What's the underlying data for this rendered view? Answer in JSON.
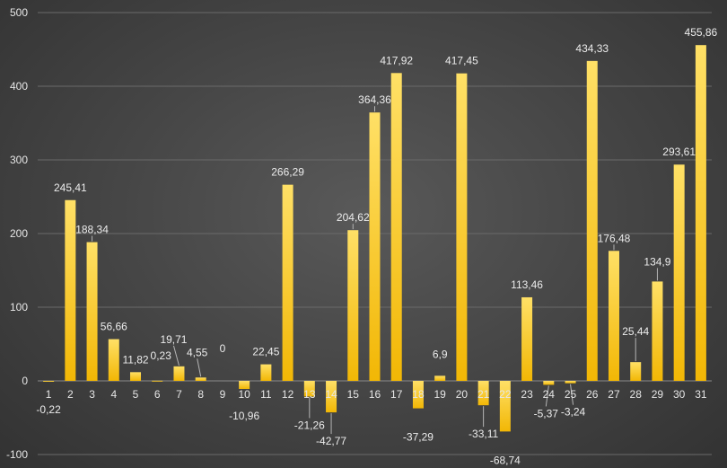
{
  "chart_data": {
    "type": "bar",
    "title": "",
    "xlabel": "",
    "ylabel": "",
    "categories": [
      "1",
      "2",
      "3",
      "4",
      "5",
      "6",
      "7",
      "8",
      "9",
      "10",
      "11",
      "12",
      "13",
      "14",
      "15",
      "16",
      "17",
      "18",
      "19",
      "20",
      "21",
      "22",
      "23",
      "24",
      "25",
      "26",
      "27",
      "28",
      "29",
      "30",
      "31"
    ],
    "values": [
      -0.22,
      245.41,
      188.34,
      56.66,
      11.82,
      0.23,
      19.71,
      4.55,
      0,
      -10.96,
      22.45,
      266.29,
      -21.26,
      -42.77,
      204.62,
      364.36,
      417.92,
      -37.29,
      6.9,
      417.45,
      -33.11,
      -68.74,
      113.46,
      -5.37,
      -3.24,
      434.33,
      176.48,
      25.44,
      134.9,
      293.61,
      455.86
    ],
    "data_labels": [
      "-0,22",
      "245,41",
      "188,34",
      "56,66",
      "11,82",
      "0,23",
      "19,71",
      "4,55",
      "0",
      "-10,96",
      "22,45",
      "266,29",
      "-21,26",
      "-42,77",
      "204,62",
      "364,36",
      "417,92",
      "-37,29",
      "6,9",
      "417,45",
      "-33,11",
      "-68,74",
      "113,46",
      "-5,37",
      "-3,24",
      "434,33",
      "176,48",
      "25,44",
      "134,9",
      "293,61",
      "455,86"
    ],
    "ylim": [
      -100,
      500
    ],
    "yticks": [
      -100,
      0,
      100,
      200,
      300,
      400,
      500
    ],
    "ytick_labels": [
      "-100",
      "0",
      "100",
      "200",
      "300",
      "400",
      "500"
    ],
    "grid": true,
    "legend": "none",
    "colors": {
      "bar_top": "#ffe066",
      "bar_bottom": "#f2b705",
      "background": "#454545",
      "text": "#e6e6e6"
    }
  }
}
